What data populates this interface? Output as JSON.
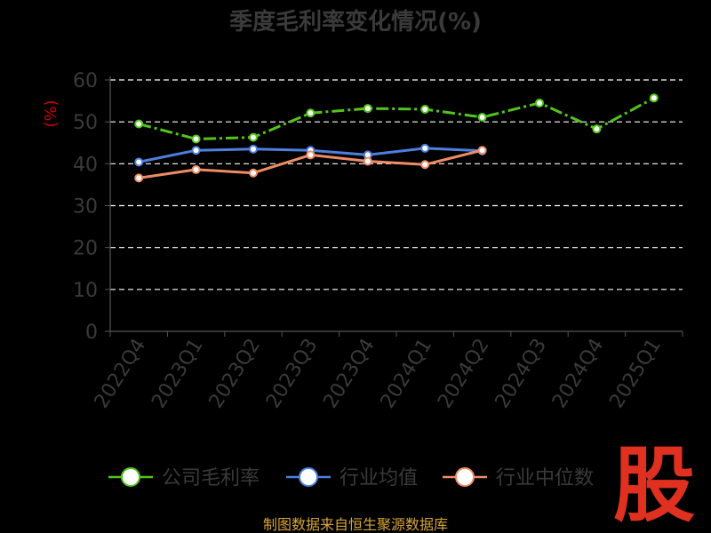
{
  "chart_data": {
    "type": "line",
    "title": "季度毛利率变化情况(%)",
    "ylabel": "(%)",
    "ylim": [
      0,
      60
    ],
    "yticks": [
      0,
      10,
      20,
      30,
      40,
      50,
      60
    ],
    "grid": true,
    "legend_position": "bottom",
    "categories": [
      "2022Q4",
      "2023Q1",
      "2023Q2",
      "2023Q3",
      "2023Q4",
      "2024Q1",
      "2024Q2",
      "2024Q3",
      "2024Q4",
      "2025Q1"
    ],
    "series": [
      {
        "name": "公司毛利率",
        "color": "#52c41a",
        "values": [
          49.5,
          45.9,
          46.3,
          52.1,
          53.2,
          53.0,
          51.1,
          54.5,
          48.3,
          55.7
        ]
      },
      {
        "name": "行业均值",
        "color": "#4d7fe0",
        "values": [
          40.4,
          43.2,
          43.5,
          43.2,
          42.1,
          43.7,
          43.1,
          null,
          null,
          null
        ]
      },
      {
        "name": "行业中位数",
        "color": "#f08c64",
        "values": [
          36.6,
          38.6,
          37.8,
          42.1,
          40.6,
          39.8,
          43.2,
          null,
          null,
          null
        ]
      }
    ]
  },
  "footer": {
    "source": "制图数据来自恒生聚源数据库",
    "logo_text": "股"
  }
}
